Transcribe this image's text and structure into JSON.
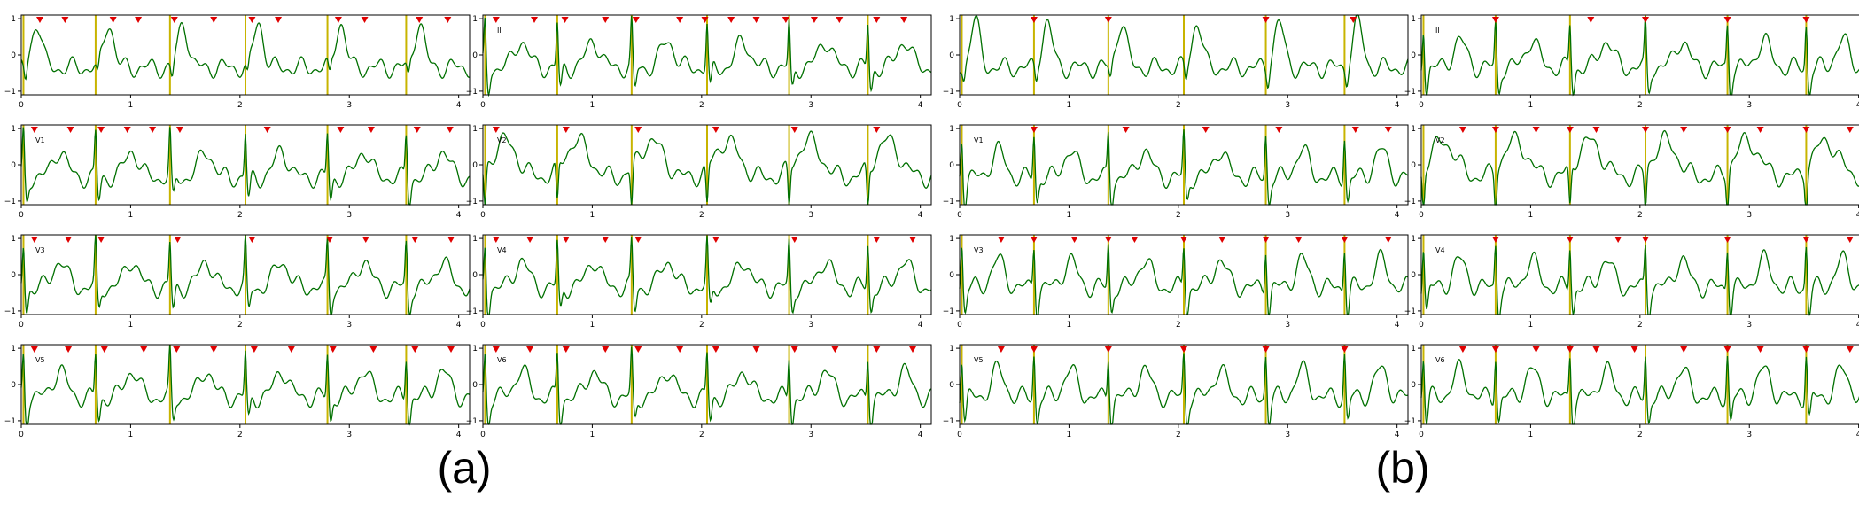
{
  "figure": {
    "captions": [
      "(a)",
      "(b)"
    ]
  },
  "chart_data": [
    {
      "type": "line",
      "panel": "a",
      "lead": "",
      "xlim": [
        0,
        4.1
      ],
      "ylim": [
        -1.1,
        1.1
      ],
      "xticks": [
        0,
        1,
        2,
        3,
        4
      ],
      "yticks": [
        -1,
        0,
        1
      ],
      "grid": false,
      "line_color": "#007000",
      "marker_color": "#e00000",
      "vline_color": "#c8b400",
      "vlines": [
        0.68,
        1.36,
        2.05,
        2.8,
        3.52
      ],
      "markers": [
        0.17,
        0.4,
        0.84,
        1.07,
        1.4,
        1.76,
        2.11,
        2.35,
        2.9,
        3.14,
        3.64,
        3.9
      ]
    },
    {
      "type": "line",
      "panel": "a",
      "lead": "II",
      "xlim": [
        0,
        4.1
      ],
      "ylim": [
        -1.1,
        1.1
      ],
      "xticks": [
        0,
        1,
        2,
        3,
        4
      ],
      "yticks": [
        -1,
        0,
        1
      ],
      "grid": false,
      "line_color": "#007000",
      "marker_color": "#e00000",
      "vline_color": "#c8b400",
      "vlines": [
        0.68,
        1.36,
        2.05,
        2.8,
        3.52
      ],
      "markers": [
        0.12,
        0.47,
        0.75,
        1.12,
        1.4,
        1.8,
        2.03,
        2.27,
        2.5,
        2.77,
        3.03,
        3.26,
        3.6,
        3.85
      ]
    },
    {
      "type": "line",
      "panel": "a",
      "lead": "V1",
      "xlim": [
        0,
        4.1
      ],
      "ylim": [
        -1.1,
        1.1
      ],
      "xticks": [
        0,
        1,
        2,
        3,
        4
      ],
      "yticks": [
        -1,
        0,
        1
      ],
      "grid": false,
      "line_color": "#007000",
      "marker_color": "#e00000",
      "vline_color": "#c8b400",
      "vlines": [
        0.68,
        1.36,
        2.05,
        2.8,
        3.52
      ],
      "markers": [
        0.12,
        0.45,
        0.73,
        0.97,
        1.2,
        1.45,
        2.25,
        2.92,
        3.2,
        3.62,
        3.92
      ]
    },
    {
      "type": "line",
      "panel": "a",
      "lead": "V2",
      "xlim": [
        0,
        4.1
      ],
      "ylim": [
        -1.1,
        1.1
      ],
      "xticks": [
        0,
        1,
        2,
        3,
        4
      ],
      "yticks": [
        -1,
        0,
        1
      ],
      "grid": false,
      "line_color": "#007000",
      "marker_color": "#e00000",
      "vline_color": "#c8b400",
      "vlines": [
        0.68,
        1.36,
        2.05,
        2.8,
        3.52
      ],
      "markers": [
        0.12,
        0.76,
        1.42,
        2.13,
        2.85,
        3.6
      ]
    },
    {
      "type": "line",
      "panel": "a",
      "lead": "V3",
      "xlim": [
        0,
        4.1
      ],
      "ylim": [
        -1.1,
        1.1
      ],
      "xticks": [
        0,
        1,
        2,
        3,
        4
      ],
      "yticks": [
        -1,
        0,
        1
      ],
      "grid": false,
      "line_color": "#007000",
      "marker_color": "#e00000",
      "vline_color": "#c8b400",
      "vlines": [
        0.68,
        1.36,
        2.05,
        2.8,
        3.52
      ],
      "markers": [
        0.12,
        0.43,
        0.73,
        1.43,
        2.11,
        2.82,
        3.15,
        3.6,
        3.93
      ]
    },
    {
      "type": "line",
      "panel": "a",
      "lead": "V4",
      "xlim": [
        0,
        4.1
      ],
      "ylim": [
        -1.1,
        1.1
      ],
      "xticks": [
        0,
        1,
        2,
        3,
        4
      ],
      "yticks": [
        -1,
        0,
        1
      ],
      "grid": false,
      "line_color": "#007000",
      "marker_color": "#e00000",
      "vline_color": "#c8b400",
      "vlines": [
        0.68,
        1.36,
        2.05,
        2.8,
        3.52
      ],
      "markers": [
        0.12,
        0.43,
        0.76,
        1.12,
        1.42,
        2.13,
        2.85,
        3.6,
        3.93
      ]
    },
    {
      "type": "line",
      "panel": "a",
      "lead": "V5",
      "xlim": [
        0,
        4.1
      ],
      "ylim": [
        -1.1,
        1.1
      ],
      "xticks": [
        0,
        1,
        2,
        3,
        4
      ],
      "yticks": [
        -1,
        0,
        1
      ],
      "grid": false,
      "line_color": "#007000",
      "marker_color": "#e00000",
      "vline_color": "#c8b400",
      "vlines": [
        0.68,
        1.36,
        2.05,
        2.8,
        3.52
      ],
      "markers": [
        0.12,
        0.43,
        0.76,
        1.12,
        1.42,
        1.76,
        2.13,
        2.47,
        2.85,
        3.22,
        3.6,
        3.93
      ]
    },
    {
      "type": "line",
      "panel": "a",
      "lead": "V6",
      "xlim": [
        0,
        4.1
      ],
      "ylim": [
        -1.1,
        1.1
      ],
      "xticks": [
        0,
        1,
        2,
        3,
        4
      ],
      "yticks": [
        -1,
        0,
        1
      ],
      "grid": false,
      "line_color": "#007000",
      "marker_color": "#e00000",
      "vline_color": "#c8b400",
      "vlines": [
        0.68,
        1.36,
        2.05,
        2.8,
        3.52
      ],
      "markers": [
        0.12,
        0.43,
        0.76,
        1.12,
        1.42,
        1.8,
        2.13,
        2.5,
        2.85,
        3.22,
        3.6,
        3.93
      ]
    },
    {
      "type": "line",
      "panel": "b",
      "lead": "",
      "xlim": [
        0,
        4.1
      ],
      "ylim": [
        -1.1,
        1.1
      ],
      "xticks": [
        0,
        1,
        2,
        3,
        4
      ],
      "yticks": [
        -1,
        0,
        1
      ],
      "grid": false,
      "line_color": "#007000",
      "marker_color": "#e00000",
      "vline_color": "#c8b400",
      "vlines": [
        0.68,
        1.36,
        2.05,
        2.8,
        3.52
      ],
      "markers": [
        0.68,
        1.36,
        2.8,
        3.6
      ]
    },
    {
      "type": "line",
      "panel": "b",
      "lead": "II",
      "xlim": [
        0,
        4.1
      ],
      "ylim": [
        -1.1,
        1.1
      ],
      "xticks": [
        0,
        1,
        2,
        3,
        4
      ],
      "yticks": [
        -1,
        0,
        1
      ],
      "grid": false,
      "line_color": "#007000",
      "marker_color": "#e00000",
      "vline_color": "#c8b400",
      "vlines": [
        0.68,
        1.36,
        2.05,
        2.8,
        3.52
      ],
      "markers": [
        0.68,
        1.55,
        2.05,
        2.8,
        3.52
      ]
    },
    {
      "type": "line",
      "panel": "b",
      "lead": "V1",
      "xlim": [
        0,
        4.1
      ],
      "ylim": [
        -1.1,
        1.1
      ],
      "xticks": [
        0,
        1,
        2,
        3,
        4
      ],
      "yticks": [
        -1,
        0,
        1
      ],
      "grid": false,
      "line_color": "#007000",
      "marker_color": "#e00000",
      "vline_color": "#c8b400",
      "vlines": [
        0.68,
        1.36,
        2.05,
        2.8,
        3.52
      ],
      "markers": [
        0.68,
        1.52,
        2.25,
        2.92,
        3.62,
        3.92
      ]
    },
    {
      "type": "line",
      "panel": "b",
      "lead": "V2",
      "xlim": [
        0,
        4.1
      ],
      "ylim": [
        -1.1,
        1.1
      ],
      "xticks": [
        0,
        1,
        2,
        3,
        4
      ],
      "yticks": [
        -1,
        0,
        1
      ],
      "grid": false,
      "line_color": "#007000",
      "marker_color": "#e00000",
      "vline_color": "#c8b400",
      "vlines": [
        0.68,
        1.36,
        2.05,
        2.8,
        3.52
      ],
      "markers": [
        0.38,
        0.68,
        1.05,
        1.36,
        1.6,
        2.05,
        2.4,
        2.8,
        3.1,
        3.52,
        3.92
      ]
    },
    {
      "type": "line",
      "panel": "b",
      "lead": "V3",
      "xlim": [
        0,
        4.1
      ],
      "ylim": [
        -1.1,
        1.1
      ],
      "xticks": [
        0,
        1,
        2,
        3,
        4
      ],
      "yticks": [
        -1,
        0,
        1
      ],
      "grid": false,
      "line_color": "#007000",
      "marker_color": "#e00000",
      "vline_color": "#c8b400",
      "vlines": [
        0.68,
        1.36,
        2.05,
        2.8,
        3.52
      ],
      "markers": [
        0.38,
        0.68,
        1.05,
        1.36,
        1.6,
        2.05,
        2.4,
        2.8,
        3.1,
        3.52,
        3.92
      ]
    },
    {
      "type": "line",
      "panel": "b",
      "lead": "V4",
      "xlim": [
        0,
        4.1
      ],
      "ylim": [
        -1.1,
        1.1
      ],
      "xticks": [
        0,
        1,
        2,
        3,
        4
      ],
      "yticks": [
        -1,
        0,
        1
      ],
      "grid": false,
      "line_color": "#007000",
      "marker_color": "#e00000",
      "vline_color": "#c8b400",
      "vlines": [
        0.68,
        1.36,
        2.05,
        2.8,
        3.52
      ],
      "markers": [
        0.68,
        1.36,
        1.8,
        2.05,
        2.8,
        3.52,
        3.92
      ]
    },
    {
      "type": "line",
      "panel": "b",
      "lead": "V5",
      "xlim": [
        0,
        4.1
      ],
      "ylim": [
        -1.1,
        1.1
      ],
      "xticks": [
        0,
        1,
        2,
        3,
        4
      ],
      "yticks": [
        -1,
        0,
        1
      ],
      "grid": false,
      "line_color": "#007000",
      "marker_color": "#e00000",
      "vline_color": "#c8b400",
      "vlines": [
        0.68,
        1.36,
        2.05,
        2.8,
        3.52
      ],
      "markers": [
        0.38,
        0.68,
        1.36,
        2.05,
        2.8,
        3.52
      ]
    },
    {
      "type": "line",
      "panel": "b",
      "lead": "V6",
      "xlim": [
        0,
        4.1
      ],
      "ylim": [
        -1.1,
        1.1
      ],
      "xticks": [
        0,
        1,
        2,
        3,
        4
      ],
      "yticks": [
        -1,
        0,
        1
      ],
      "grid": false,
      "line_color": "#007000",
      "marker_color": "#e00000",
      "vline_color": "#c8b400",
      "vlines": [
        0.68,
        1.36,
        2.05,
        2.8,
        3.52
      ],
      "markers": [
        0.38,
        0.68,
        1.05,
        1.36,
        1.6,
        1.95,
        2.4,
        2.8,
        3.1,
        3.52,
        3.92
      ]
    }
  ]
}
